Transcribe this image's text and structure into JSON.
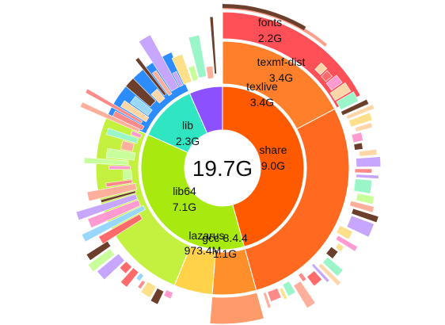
{
  "usage": {
    "total": "19.7G",
    "center_color": "#ffffff",
    "segments": [
      {
        "id": "share",
        "name": "share",
        "size": "9.0G",
        "level": 1,
        "start": 0.0,
        "end": 0.457,
        "color": "#ff5a00"
      },
      {
        "id": "lib64",
        "name": "lib64",
        "size": "7.1G",
        "level": 1,
        "start": 0.457,
        "end": 0.817,
        "color": "#a8ea10"
      },
      {
        "id": "lib",
        "name": "lib",
        "size": "2.3G",
        "level": 1,
        "start": 0.817,
        "end": 0.934,
        "color": "#30e6c2"
      },
      {
        "id": "other1",
        "name": "",
        "size": "",
        "level": 1,
        "start": 0.934,
        "end": 1.0,
        "color": "#8c50ff"
      },
      {
        "id": "texlive",
        "name": "texlive",
        "size": "3.4G",
        "level": 2,
        "start": 0.0,
        "end": 0.173,
        "color": "#ff7f2a"
      },
      {
        "id": "share-rest",
        "name": "",
        "size": "",
        "level": 2,
        "start": 0.173,
        "end": 0.457,
        "color": "#ff6a20"
      },
      {
        "id": "gcc",
        "name": "gcc",
        "size": "1.1G",
        "level": 2,
        "start": 0.457,
        "end": 0.513,
        "color": "#ff8f2a"
      },
      {
        "id": "lazarus",
        "name": "lazarus",
        "size": "973.4M",
        "level": 2,
        "start": 0.513,
        "end": 0.562,
        "color": "#ffd24a"
      },
      {
        "id": "lib64-rest",
        "name": "",
        "size": "",
        "level": 2,
        "start": 0.562,
        "end": 0.817,
        "color": "#c4f040"
      },
      {
        "id": "lib-rest",
        "name": "",
        "size": "",
        "level": 2,
        "start": 0.817,
        "end": 0.934,
        "color": "#2d8cff"
      },
      {
        "id": "texmf-dist",
        "name": "texmf-dist",
        "size": "3.4G",
        "level": 3,
        "start": 0.0,
        "end": 0.173,
        "color": "#ff4f57"
      },
      {
        "id": "fonts",
        "name": "fonts",
        "size": "2.2G",
        "level": 4,
        "start": 0.0,
        "end": 0.112,
        "color": "#ff9e8c"
      },
      {
        "id": "gcc-ver",
        "name": "8.4.4",
        "size": "",
        "level": 3,
        "start": 0.457,
        "end": 0.513,
        "color": "#ff9b6a"
      }
    ]
  },
  "labels": {
    "share": {
      "name": "share",
      "size": "9.0G"
    },
    "lib64": {
      "name": "lib64",
      "size": "7.1G"
    },
    "lib": {
      "name": "lib",
      "size": "2.3G"
    },
    "texlive": {
      "name": "texlive",
      "size": "3.4G"
    },
    "texmf": {
      "name": "texmf-dist",
      "size": "3.4G"
    },
    "fonts": {
      "name": "fonts",
      "size": "2.2G"
    },
    "gcc": {
      "name": "gcc-8.4.4",
      "size": "1.1G"
    },
    "lazarus": {
      "name": "lazarus",
      "size": "973.4M"
    }
  }
}
